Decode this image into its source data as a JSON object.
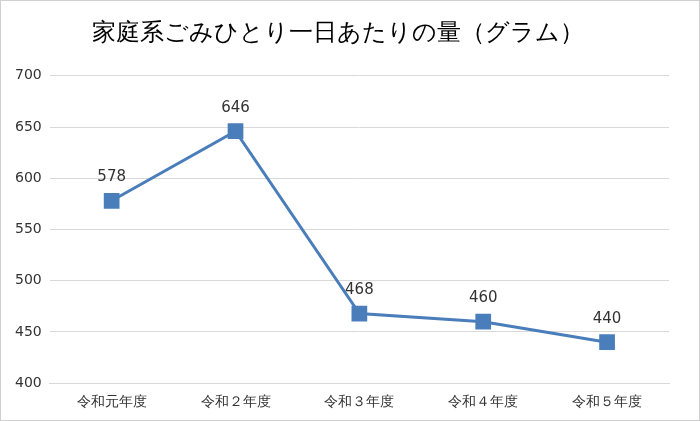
{
  "chart_data": {
    "type": "line",
    "title": "家庭系ごみひとり一日あたりの量（グラム）",
    "categories": [
      "令和元年度",
      "令和２年度",
      "令和３年度",
      "令和４年度",
      "令和５年度"
    ],
    "values": [
      578,
      646,
      468,
      460,
      440
    ],
    "color": "#4a7ebb",
    "marker": "square",
    "line_style": "solid",
    "ylim": [
      400,
      700
    ],
    "yticks": [
      400,
      450,
      500,
      550,
      600,
      650,
      700
    ],
    "grid": true,
    "data_labels": true
  }
}
